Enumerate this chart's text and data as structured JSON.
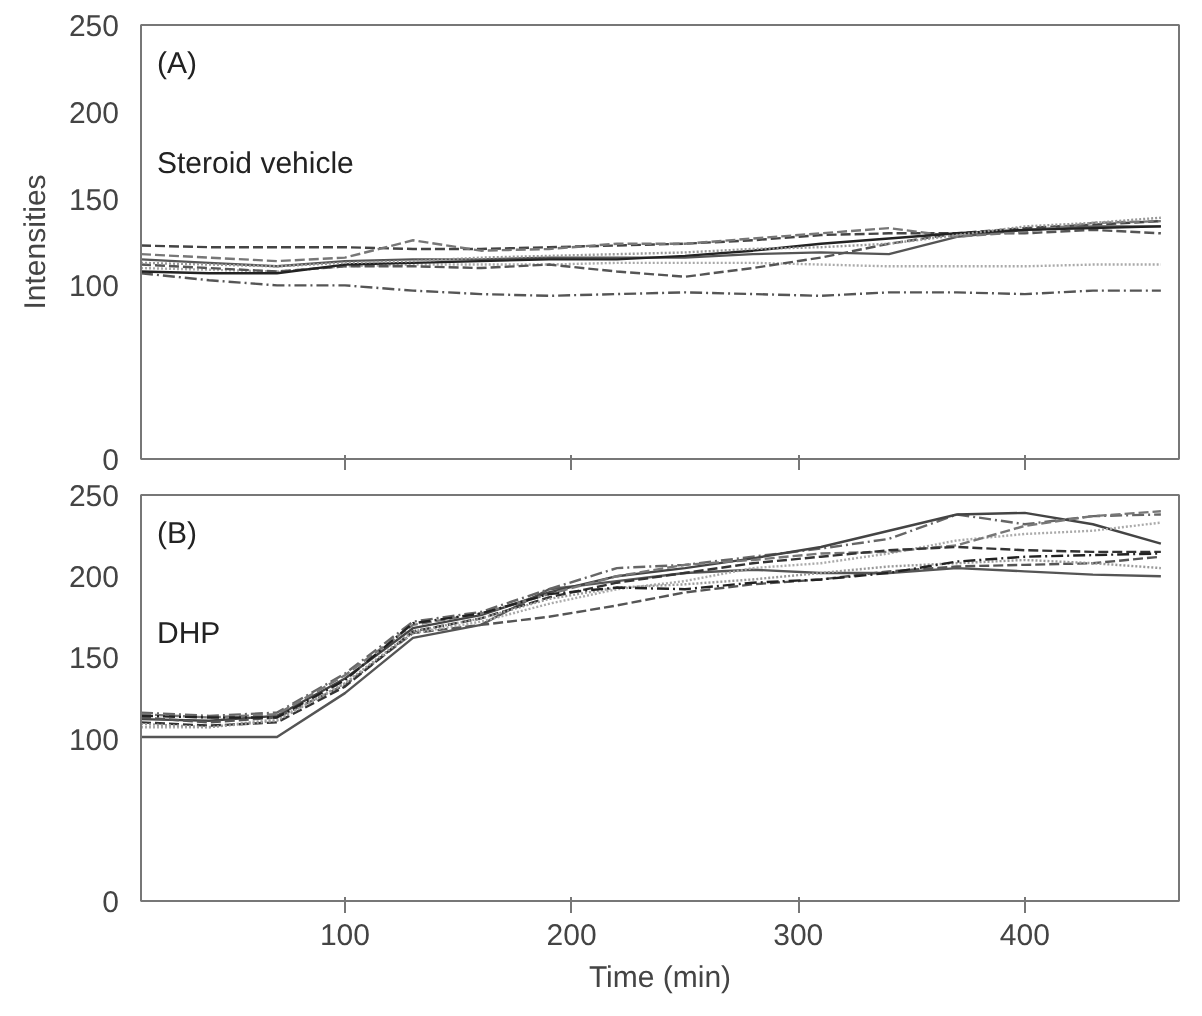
{
  "chart_data": [
    {
      "type": "line",
      "ylabel": "Intensities",
      "annotations": [
        "(A)",
        "Steroid vehicle"
      ],
      "tick_labels": "y",
      "grid": false,
      "x": [
        10,
        40,
        70,
        100,
        130,
        160,
        190,
        220,
        250,
        280,
        310,
        340,
        370,
        400,
        430,
        460
      ],
      "xlim": [
        10,
        468
      ],
      "xticks": [
        100,
        200,
        300,
        400
      ],
      "ylim": [
        0,
        250
      ],
      "yticks": [
        0,
        100,
        150,
        200,
        250
      ],
      "series": [
        {
          "color": "#555555",
          "line_style": "dashdot",
          "values": [
            107,
            103,
            100,
            100,
            97,
            95,
            94,
            95,
            96,
            95,
            94,
            96,
            96,
            95,
            97,
            97
          ]
        },
        {
          "color": "#444444",
          "line_style": "dashed",
          "values": [
            123,
            122,
            122,
            122,
            121,
            121,
            122,
            123,
            124,
            126,
            129,
            130,
            130,
            133,
            135,
            137
          ]
        },
        {
          "color": "#555555",
          "line_style": "solid",
          "values": [
            115,
            113,
            111,
            114,
            115,
            115,
            116,
            116,
            116,
            118,
            119,
            118,
            128,
            132,
            134,
            134
          ]
        },
        {
          "color": "#aaaaaa",
          "line_style": "dotted",
          "values": [
            110,
            109,
            108,
            111,
            112,
            112,
            112,
            113,
            113,
            113,
            112,
            111,
            111,
            111,
            112,
            112
          ]
        },
        {
          "color": "#555555",
          "line_style": "dashed",
          "values": [
            112,
            110,
            108,
            111,
            111,
            110,
            112,
            108,
            105,
            110,
            116,
            124,
            130,
            130,
            132,
            130
          ]
        },
        {
          "color": "#777777",
          "line_style": "dashed",
          "values": [
            118,
            116,
            114,
            116,
            126,
            120,
            121,
            124,
            124,
            127,
            130,
            133,
            128,
            131,
            136,
            137
          ]
        },
        {
          "color": "#222222",
          "line_style": "solid",
          "values": [
            108,
            107,
            107,
            112,
            113,
            114,
            115,
            115,
            117,
            120,
            124,
            127,
            130,
            132,
            133,
            134
          ]
        },
        {
          "color": "#999999",
          "line_style": "dotted",
          "values": [
            113,
            112,
            111,
            113,
            114,
            116,
            117,
            118,
            119,
            121,
            122,
            124,
            129,
            134,
            136,
            139
          ]
        }
      ]
    },
    {
      "type": "line",
      "xlabel": "Time (min)",
      "annotations": [
        "(B)",
        "DHP"
      ],
      "grid": false,
      "x": [
        10,
        40,
        70,
        100,
        130,
        160,
        190,
        220,
        250,
        280,
        310,
        340,
        370,
        400,
        430,
        460
      ],
      "xlim": [
        10,
        468
      ],
      "xticks": [
        100,
        200,
        300,
        400
      ],
      "ylim": [
        0,
        250
      ],
      "yticks": [
        0,
        100,
        150,
        200,
        250
      ],
      "series": [
        {
          "color": "#555555",
          "line_style": "solid",
          "values": [
            101,
            101,
            101,
            128,
            162,
            170,
            192,
            197,
            202,
            204,
            202,
            202,
            205,
            203,
            201,
            200
          ]
        },
        {
          "color": "#666666",
          "line_style": "dashdot",
          "values": [
            116,
            114,
            116,
            140,
            172,
            178,
            192,
            205,
            207,
            212,
            217,
            223,
            238,
            232,
            237,
            238
          ]
        },
        {
          "color": "#444444",
          "line_style": "solid",
          "values": [
            112,
            111,
            114,
            137,
            168,
            176,
            190,
            200,
            205,
            211,
            218,
            228,
            238,
            239,
            232,
            220
          ]
        },
        {
          "color": "#555555",
          "line_style": "dashed",
          "values": [
            113,
            110,
            113,
            133,
            165,
            170,
            175,
            182,
            190,
            195,
            198,
            203,
            206,
            207,
            208,
            212
          ]
        },
        {
          "color": "#aaaaaa",
          "line_style": "dotted",
          "values": [
            107,
            107,
            112,
            134,
            165,
            172,
            183,
            192,
            197,
            205,
            208,
            214,
            222,
            226,
            228,
            233
          ]
        },
        {
          "color": "#777777",
          "line_style": "dashed",
          "values": [
            115,
            113,
            115,
            139,
            170,
            177,
            189,
            200,
            207,
            210,
            214,
            215,
            219,
            231,
            237,
            240
          ]
        },
        {
          "color": "#333333",
          "line_style": "dashed",
          "values": [
            110,
            108,
            110,
            132,
            166,
            174,
            187,
            196,
            202,
            208,
            212,
            216,
            218,
            216,
            215,
            215
          ]
        },
        {
          "color": "#999999",
          "line_style": "dotted",
          "values": [
            109,
            107,
            111,
            134,
            166,
            174,
            186,
            193,
            195,
            198,
            202,
            206,
            208,
            210,
            208,
            205
          ]
        },
        {
          "color": "#222222",
          "line_style": "dashdot",
          "values": [
            114,
            113,
            113,
            136,
            171,
            177,
            189,
            193,
            192,
            196,
            198,
            202,
            209,
            212,
            213,
            214
          ]
        }
      ]
    }
  ]
}
